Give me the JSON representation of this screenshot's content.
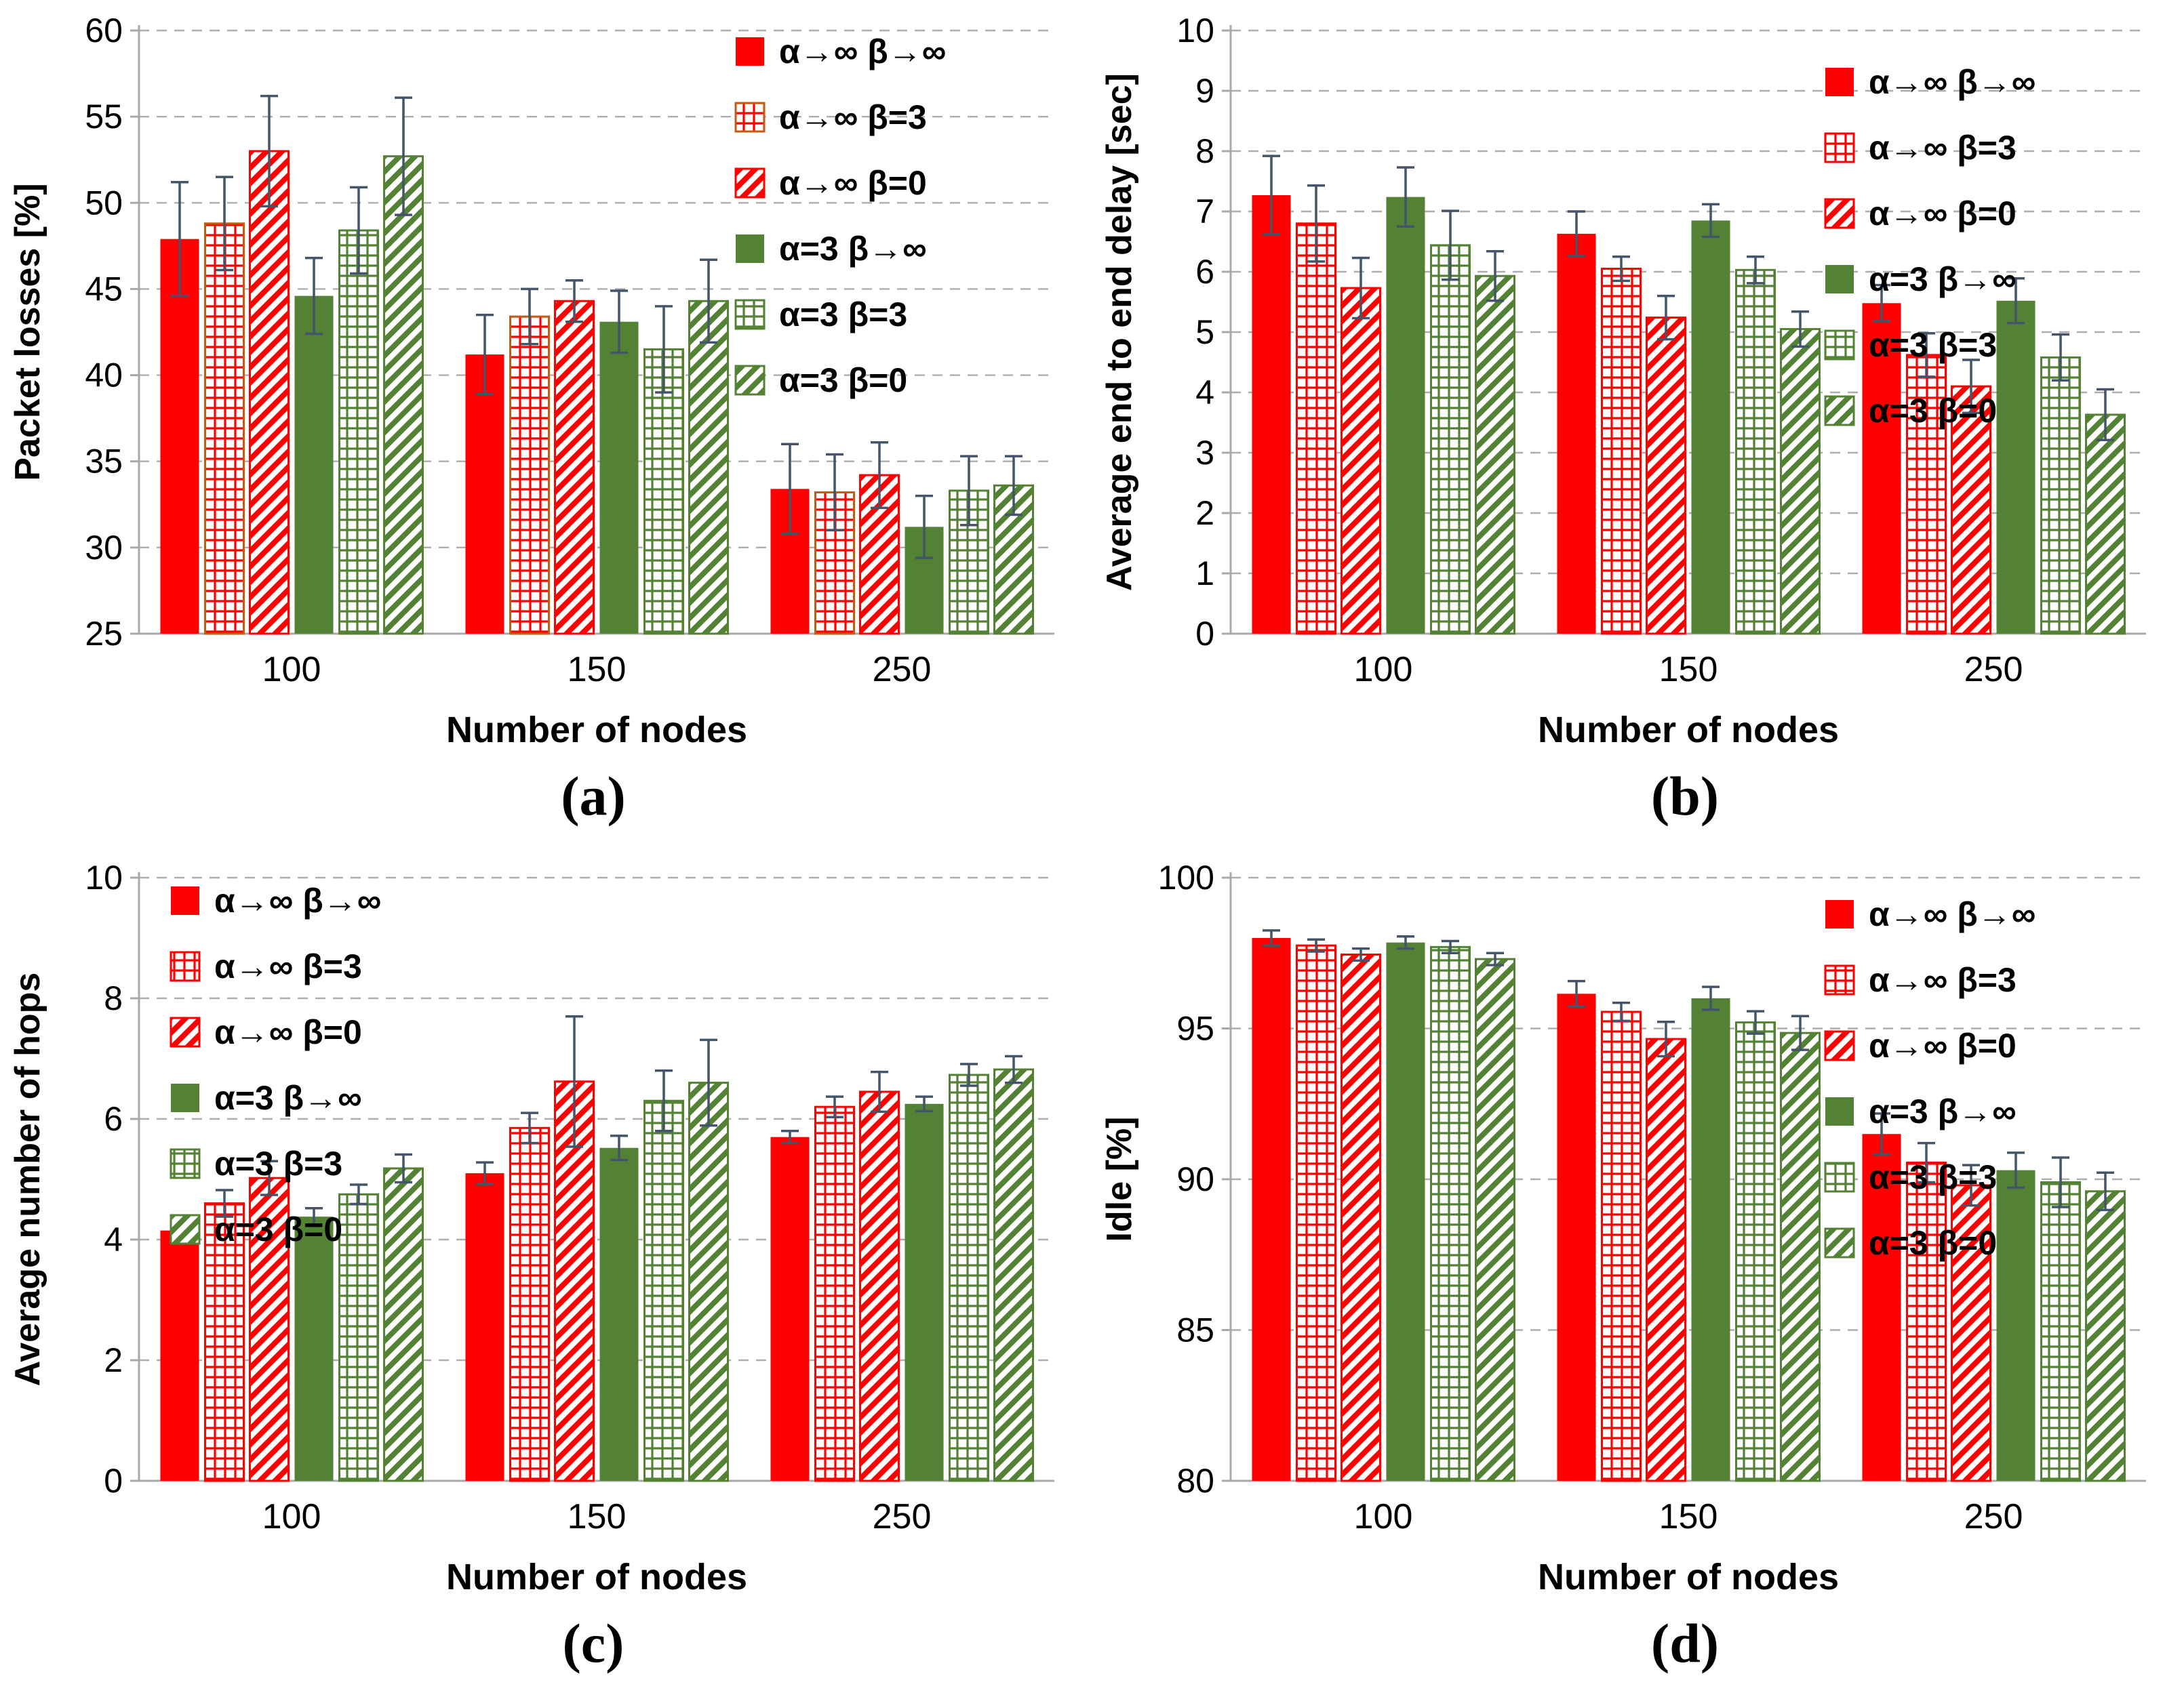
{
  "colors": {
    "red": "#FE0000",
    "green": "#548235",
    "red_grid_border": "#C55A11",
    "error_bar": "#44546A",
    "gridline": "#ADADAD",
    "axis": "#A9A9A9",
    "text": "#000000"
  },
  "chart_data": [
    {
      "id": "a",
      "type": "bar",
      "caption": "(a)",
      "xlabel": "Number of nodes",
      "ylabel": "Packet losses [%]",
      "categories": [
        "100",
        "150",
        "250"
      ],
      "ylim": [
        25,
        60
      ],
      "yticks": [
        25,
        30,
        35,
        40,
        45,
        50,
        55,
        60
      ],
      "grid": true,
      "legend_position": "top-right",
      "series": [
        {
          "name": "α→∞ β→∞",
          "style": "red-solid",
          "values": [
            47.9,
            41.2,
            33.4
          ],
          "errors": [
            3.3,
            2.3,
            2.6
          ]
        },
        {
          "name": "α→∞ β=3",
          "style": "red-grid",
          "border": "#C55A11",
          "values": [
            48.8,
            43.4,
            33.2
          ],
          "errors": [
            2.7,
            1.6,
            2.2
          ]
        },
        {
          "name": "α→∞ β=0",
          "style": "red-diag",
          "values": [
            53.0,
            44.3,
            34.2
          ],
          "errors": [
            3.2,
            1.2,
            1.9
          ]
        },
        {
          "name": "α=3 β→∞",
          "style": "green-solid",
          "values": [
            44.6,
            43.1,
            31.2
          ],
          "errors": [
            2.2,
            1.8,
            1.8
          ]
        },
        {
          "name": "α=3 β=3",
          "style": "green-grid",
          "values": [
            48.4,
            41.5,
            33.3
          ],
          "errors": [
            2.5,
            2.5,
            2.0
          ]
        },
        {
          "name": "α=3 β=0",
          "style": "green-diag",
          "values": [
            52.7,
            44.3,
            33.6
          ],
          "errors": [
            3.4,
            2.4,
            1.7
          ]
        }
      ]
    },
    {
      "id": "b",
      "type": "bar",
      "caption": "(b)",
      "xlabel": "Number of nodes",
      "ylabel": "Average end to end delay [sec]",
      "categories": [
        "100",
        "150",
        "250"
      ],
      "ylim": [
        0,
        10
      ],
      "yticks": [
        0,
        1,
        2,
        3,
        4,
        5,
        6,
        7,
        8,
        9,
        10
      ],
      "grid": true,
      "legend_position": "top-right",
      "series": [
        {
          "name": "α→∞ β→∞",
          "style": "red-solid",
          "values": [
            7.27,
            6.63,
            5.48
          ],
          "errors": [
            0.65,
            0.37,
            0.3
          ]
        },
        {
          "name": "α→∞ β=3",
          "style": "red-grid",
          "values": [
            6.8,
            6.05,
            4.62
          ],
          "errors": [
            0.63,
            0.2,
            0.36
          ]
        },
        {
          "name": "α→∞ β=0",
          "style": "red-diag",
          "values": [
            5.73,
            5.24,
            4.1
          ],
          "errors": [
            0.5,
            0.36,
            0.44
          ]
        },
        {
          "name": "α=3 β→∞",
          "style": "green-solid",
          "values": [
            7.24,
            6.85,
            5.52
          ],
          "errors": [
            0.49,
            0.27,
            0.37
          ]
        },
        {
          "name": "α=3 β=3",
          "style": "green-grid",
          "values": [
            6.44,
            6.03,
            4.58
          ],
          "errors": [
            0.57,
            0.22,
            0.38
          ]
        },
        {
          "name": "α=3 β=0",
          "style": "green-diag",
          "values": [
            5.93,
            5.05,
            3.63
          ],
          "errors": [
            0.41,
            0.29,
            0.42
          ]
        }
      ]
    },
    {
      "id": "c",
      "type": "bar",
      "caption": "(c)",
      "xlabel": "Number of nodes",
      "ylabel": "Average number of hops",
      "categories": [
        "100",
        "150",
        "250"
      ],
      "ylim": [
        0,
        10
      ],
      "yticks": [
        0,
        2,
        4,
        6,
        8,
        10
      ],
      "grid": true,
      "legend_position": "top-left",
      "series": [
        {
          "name": "α→∞ β→∞",
          "style": "red-solid",
          "values": [
            4.15,
            5.1,
            5.7
          ],
          "errors": [
            0.18,
            0.18,
            0.1
          ]
        },
        {
          "name": "α→∞ β=3",
          "style": "red-grid",
          "values": [
            4.6,
            5.85,
            6.2
          ],
          "errors": [
            0.22,
            0.25,
            0.17
          ]
        },
        {
          "name": "α→∞ β=0",
          "style": "red-diag",
          "values": [
            5.02,
            6.62,
            6.45
          ],
          "errors": [
            0.28,
            1.08,
            0.33
          ]
        },
        {
          "name": "α=3 β→∞",
          "style": "green-solid",
          "values": [
            4.38,
            5.52,
            6.25
          ],
          "errors": [
            0.14,
            0.2,
            0.12
          ]
        },
        {
          "name": "α=3 β=3",
          "style": "green-grid",
          "values": [
            4.75,
            6.3,
            6.73
          ],
          "errors": [
            0.16,
            0.5,
            0.18
          ]
        },
        {
          "name": "α=3 β=0",
          "style": "green-diag",
          "values": [
            5.18,
            6.6,
            6.82
          ],
          "errors": [
            0.23,
            0.71,
            0.22
          ]
        }
      ]
    },
    {
      "id": "d",
      "type": "bar",
      "caption": "(d)",
      "xlabel": "Number of nodes",
      "ylabel": "Idle [%]",
      "categories": [
        "100",
        "150",
        "250"
      ],
      "ylim": [
        80,
        100
      ],
      "yticks": [
        80,
        85,
        90,
        95,
        100
      ],
      "grid": true,
      "legend_position": "top-right",
      "series": [
        {
          "name": "α→∞ β→∞",
          "style": "red-solid",
          "values": [
            98.0,
            96.15,
            91.5
          ],
          "errors": [
            0.25,
            0.42,
            0.68
          ]
        },
        {
          "name": "α→∞ β=3",
          "style": "red-grid",
          "values": [
            97.75,
            95.55,
            90.55
          ],
          "errors": [
            0.2,
            0.3,
            0.65
          ]
        },
        {
          "name": "α→∞ β=0",
          "style": "red-diag",
          "values": [
            97.45,
            94.65,
            89.8
          ],
          "errors": [
            0.2,
            0.57,
            0.67
          ]
        },
        {
          "name": "α=3 β→∞",
          "style": "green-solid",
          "values": [
            97.85,
            96.0,
            90.3
          ],
          "errors": [
            0.2,
            0.38,
            0.58
          ]
        },
        {
          "name": "α=3 β=3",
          "style": "green-grid",
          "values": [
            97.7,
            95.2,
            89.9
          ],
          "errors": [
            0.2,
            0.37,
            0.82
          ]
        },
        {
          "name": "α=3 β=0",
          "style": "green-diag",
          "values": [
            97.3,
            94.85,
            89.6
          ],
          "errors": [
            0.2,
            0.56,
            0.62
          ]
        }
      ]
    }
  ]
}
